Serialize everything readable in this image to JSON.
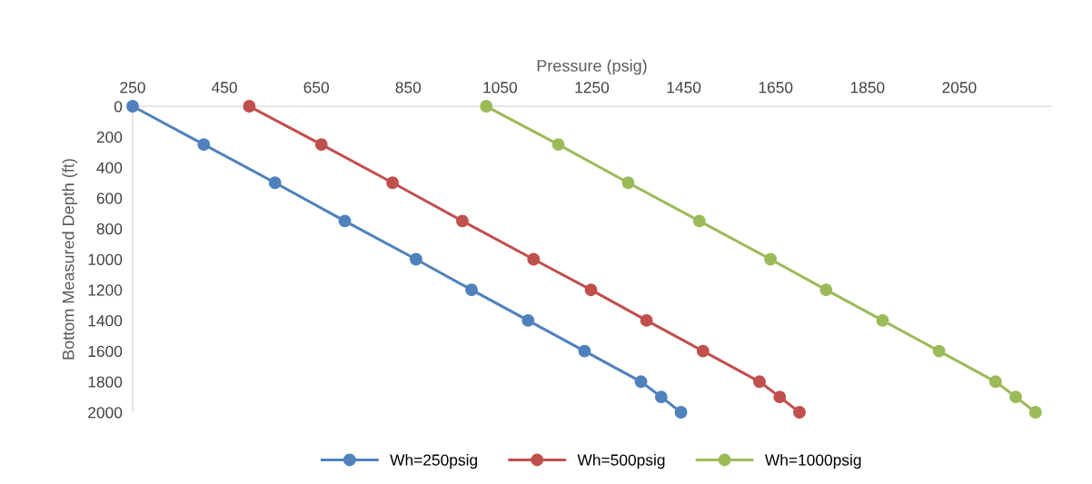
{
  "chart_data": {
    "type": "line",
    "xlabel": "Pressure (psig)",
    "ylabel": "Bottom Measured Depth (ft)",
    "series": [
      {
        "name": "Wh=250psig",
        "color": "#4f81bd",
        "x": [
          250,
          405,
          560,
          712,
          867,
          988,
          1111,
          1234,
          1357,
          1401,
          1444
        ],
        "values": [
          0,
          250,
          500,
          750,
          1000,
          1200,
          1400,
          1600,
          1800,
          1900,
          2000
        ]
      },
      {
        "name": "Wh=500psig",
        "color": "#c0504d",
        "x": [
          504,
          661,
          816,
          968,
          1123,
          1248,
          1369,
          1492,
          1615,
          1659,
          1702
        ],
        "values": [
          0,
          250,
          500,
          750,
          1000,
          1200,
          1400,
          1600,
          1800,
          1900,
          2000
        ]
      },
      {
        "name": "Wh=1000psig",
        "color": "#9bbb59",
        "x": [
          1020,
          1177,
          1329,
          1484,
          1639,
          1760,
          1883,
          2006,
          2129,
          2173,
          2216
        ],
        "values": [
          0,
          250,
          500,
          750,
          1000,
          1200,
          1400,
          1600,
          1800,
          1900,
          2000
        ]
      }
    ],
    "xlim": [
      250,
      2250
    ],
    "xticks": [
      250,
      450,
      650,
      850,
      1050,
      1250,
      1450,
      1650,
      1850,
      2050
    ],
    "ylim": [
      2000,
      0
    ],
    "yticks": [
      0,
      200,
      400,
      600,
      800,
      1000,
      1200,
      1400,
      1600,
      1800,
      2000
    ],
    "marker": "circle",
    "line_style": "solid",
    "legend": "bottom"
  }
}
